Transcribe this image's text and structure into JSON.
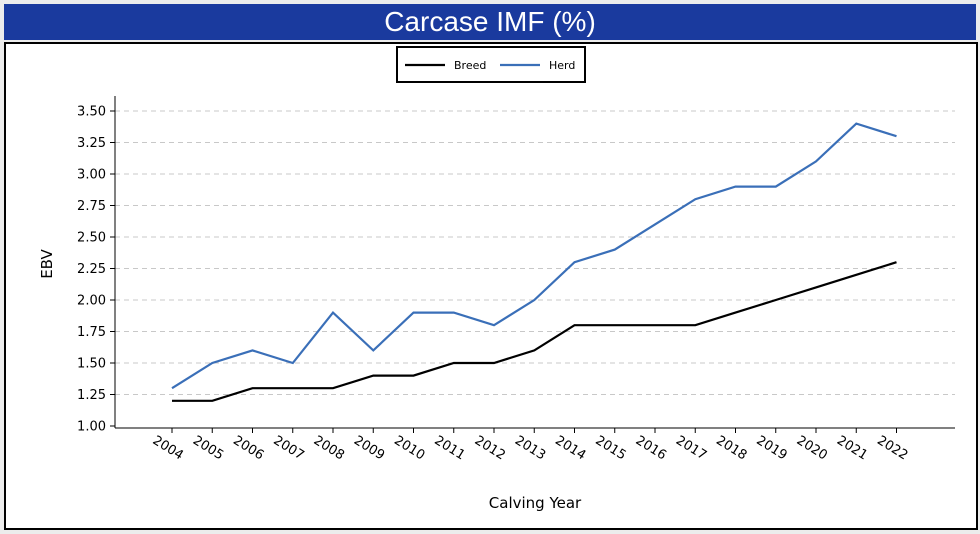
{
  "title": "Carcase IMF (%)",
  "chart_data": {
    "type": "line",
    "title": "Carcase IMF (%)",
    "xlabel": "Calving Year",
    "ylabel": "EBV",
    "x": [
      "2004",
      "2005",
      "2006",
      "2007",
      "2008",
      "2009",
      "2010",
      "2011",
      "2012",
      "2013",
      "2014",
      "2015",
      "2016",
      "2017",
      "2018",
      "2019",
      "2020",
      "2021",
      "2022"
    ],
    "ylim": [
      1.0,
      3.5
    ],
    "yticks": [
      "1.00",
      "1.25",
      "1.50",
      "1.75",
      "2.00",
      "2.25",
      "2.50",
      "2.75",
      "3.00",
      "3.25",
      "3.50"
    ],
    "grid": "horizontal dashed",
    "legend_position": "top-center",
    "series": [
      {
        "name": "Breed",
        "color": "#000000",
        "values": [
          1.2,
          1.2,
          1.3,
          1.3,
          1.3,
          1.4,
          1.4,
          1.5,
          1.5,
          1.6,
          1.8,
          1.8,
          1.8,
          1.8,
          1.9,
          2.0,
          2.1,
          2.2,
          2.3
        ]
      },
      {
        "name": "Herd",
        "color": "#3a6fb8",
        "values": [
          1.3,
          1.5,
          1.6,
          1.5,
          1.9,
          1.6,
          1.9,
          1.9,
          1.8,
          2.0,
          2.3,
          2.4,
          2.6,
          2.8,
          2.9,
          2.9,
          3.1,
          3.4,
          3.3
        ]
      }
    ]
  }
}
